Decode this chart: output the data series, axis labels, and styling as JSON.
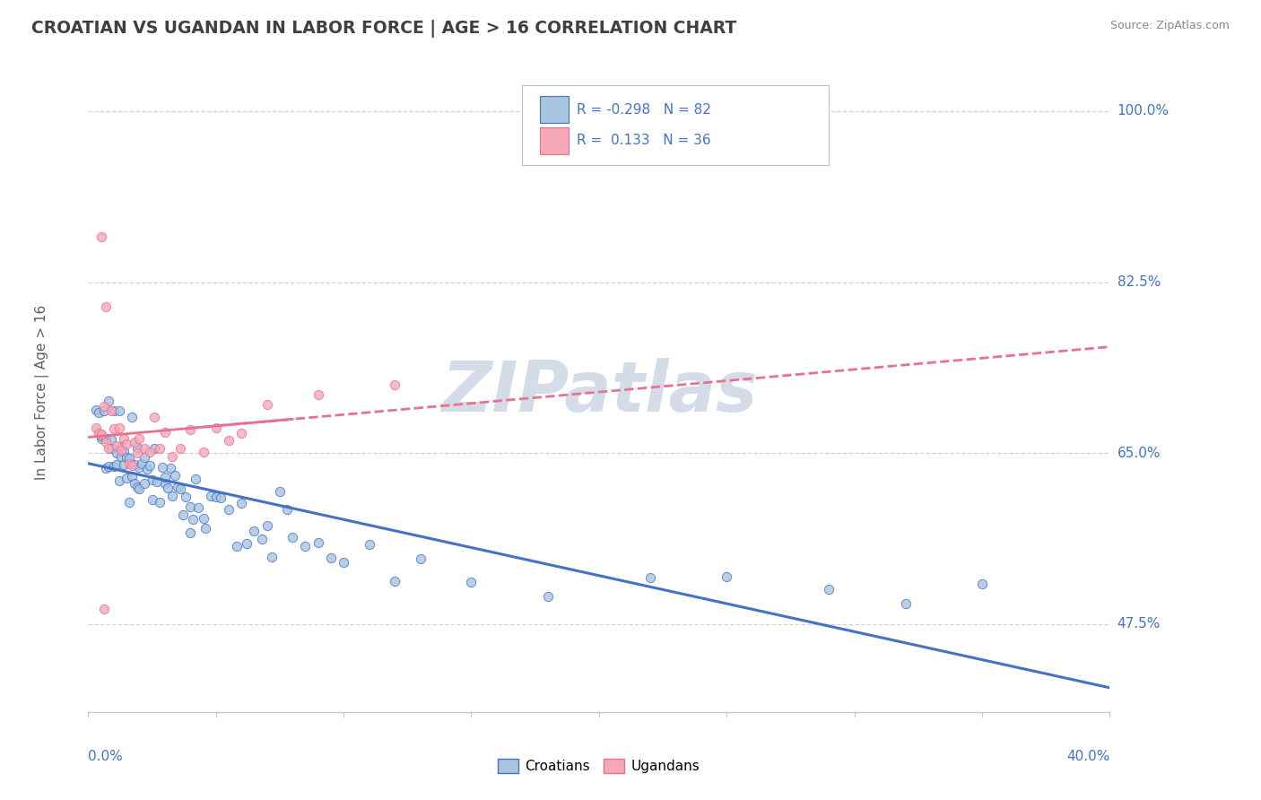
{
  "title": "CROATIAN VS UGANDAN IN LABOR FORCE | AGE > 16 CORRELATION CHART",
  "source_text": "Source: ZipAtlas.com",
  "ylabel": "In Labor Force | Age > 16",
  "ytick_labels": [
    "47.5%",
    "65.0%",
    "82.5%",
    "100.0%"
  ],
  "ytick_values": [
    0.475,
    0.65,
    0.825,
    1.0
  ],
  "xmin": 0.0,
  "xmax": 0.4,
  "ymin": 0.385,
  "ymax": 1.04,
  "croatian_R": -0.298,
  "croatian_N": 82,
  "ugandan_R": 0.133,
  "ugandan_N": 36,
  "croatian_color": "#a8c4e0",
  "ugandan_color": "#f4a8b8",
  "croatian_line_color": "#4472c4",
  "ugandan_line_color": "#e87090",
  "background_color": "#ffffff",
  "grid_color": "#c8c8c8",
  "title_color": "#404040",
  "label_color": "#4472c4",
  "watermark_color": "#d4dce8",
  "watermark_text": "ZIPatlas",
  "legend_text_color": "#4472c4",
  "source_color": "#888888"
}
